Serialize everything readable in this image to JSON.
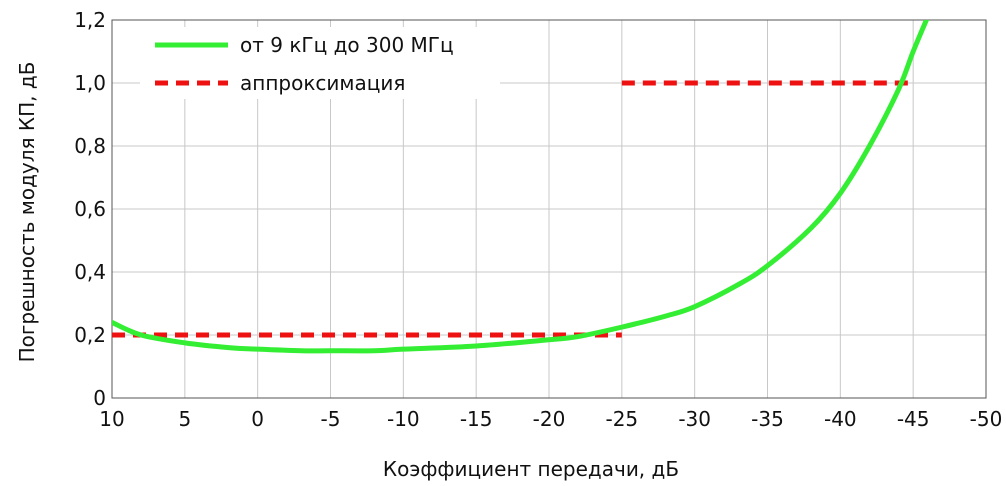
{
  "chart_data": {
    "type": "line",
    "title": "",
    "xlabel": "Коэффициент передачи, дБ",
    "ylabel": "Погрешность модуля КП, дБ",
    "xlim": [
      10,
      -50
    ],
    "ylim": [
      0,
      1.2
    ],
    "x_ticks": [
      10,
      5,
      0,
      -5,
      -10,
      -15,
      -20,
      -25,
      -30,
      -35,
      -40,
      -45,
      -50
    ],
    "x_tick_labels": [
      "10",
      "5",
      "0",
      "-5",
      "-10",
      "-15",
      "-20",
      "-25",
      "-30",
      "-35",
      "-40",
      "-45",
      "-50"
    ],
    "y_ticks": [
      0,
      0.2,
      0.4,
      0.6,
      0.8,
      1.0,
      1.2
    ],
    "y_tick_labels": [
      "0",
      "0,2",
      "0,4",
      "0,6",
      "0,8",
      "1,0",
      "1,2"
    ],
    "grid": true,
    "legend_position": "top-left",
    "series": [
      {
        "name": "от 9 кГц до 300 МГц",
        "color": "#33ee33",
        "style": "solid",
        "x": [
          10,
          8,
          5,
          2,
          0,
          -3,
          -5,
          -8,
          -10,
          -15,
          -20,
          -22,
          -25,
          -28,
          -30,
          -33,
          -35,
          -38,
          -40,
          -42,
          -44,
          -45,
          -46
        ],
        "y": [
          0.24,
          0.2,
          0.175,
          0.16,
          0.155,
          0.15,
          0.15,
          0.15,
          0.155,
          0.165,
          0.185,
          0.195,
          0.225,
          0.26,
          0.29,
          0.36,
          0.42,
          0.54,
          0.65,
          0.8,
          0.98,
          1.1,
          1.21
        ]
      },
      {
        "name": "аппроксимация",
        "color": "#ee1111",
        "style": "dashed",
        "segments": [
          {
            "x": [
              10,
              -25
            ],
            "y": [
              0.2,
              0.2
            ]
          },
          {
            "x": [
              -25,
              -45
            ],
            "y": [
              1.0,
              1.0
            ]
          }
        ]
      }
    ]
  }
}
